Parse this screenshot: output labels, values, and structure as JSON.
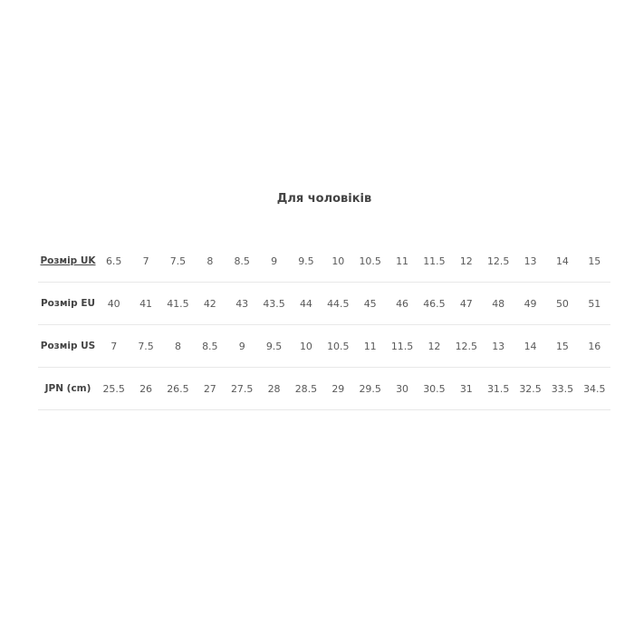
{
  "title": "Для чоловіків",
  "rows": [
    {
      "label": "Розмір UK",
      "link": true,
      "values": [
        "6.5",
        "7",
        "7.5",
        "8",
        "8.5",
        "9",
        "9.5",
        "10",
        "10.5",
        "11",
        "11.5",
        "12",
        "12.5",
        "13",
        "14",
        "15"
      ]
    },
    {
      "label": "Розмір EU",
      "link": false,
      "values": [
        "40",
        "41",
        "41.5",
        "42",
        "43",
        "43.5",
        "44",
        "44.5",
        "45",
        "46",
        "46.5",
        "47",
        "48",
        "49",
        "50",
        "51"
      ]
    },
    {
      "label": "Розмір US",
      "link": false,
      "values": [
        "7",
        "7.5",
        "8",
        "8.5",
        "9",
        "9.5",
        "10",
        "10.5",
        "11",
        "11.5",
        "12",
        "12.5",
        "13",
        "14",
        "15",
        "16"
      ]
    },
    {
      "label": "JPN (cm)",
      "link": false,
      "values": [
        "25.5",
        "26",
        "26.5",
        "27",
        "27.5",
        "28",
        "28.5",
        "29",
        "29.5",
        "30",
        "30.5",
        "31",
        "31.5",
        "32.5",
        "33.5",
        "34.5"
      ]
    }
  ]
}
